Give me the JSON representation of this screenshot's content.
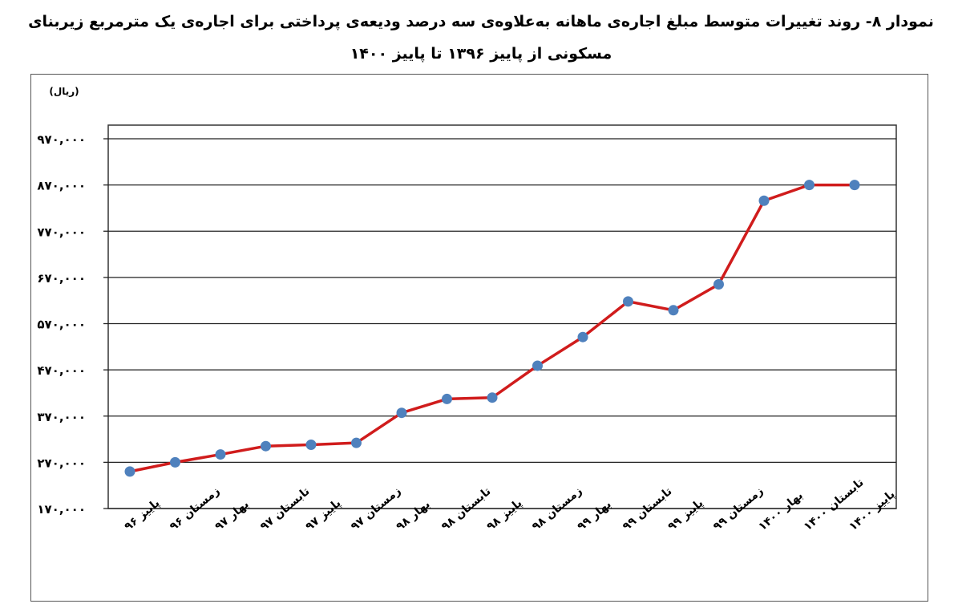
{
  "title_line1": "نمودار ۸- روند تغییرات متوسط مبلغ اجاره‌ی ماهانه به‌علاوه‌ی سه درصد ودیعه‌ی پرداختی برای اجاره‌ی یک مترمربع زیربنای",
  "title_line2": "مسکونی از پاییز ۱۳۹۶ تا پاییز ۱۴۰۰",
  "chart_data": {
    "type": "line",
    "title": "نمودار ۸- روند تغییرات متوسط مبلغ اجاره‌ی ماهانه به‌علاوه‌ی سه درصد ودیعه‌ی پرداختی برای اجاره‌ی یک مترمربع زیربنای مسکونی از پاییز ۱۳۹۶ تا پاییز ۱۴۰۰",
    "ylabel": "(ریال)",
    "xlabel": "",
    "ylim": [
      170000,
      970000
    ],
    "yticks": [
      170000,
      270000,
      370000,
      470000,
      570000,
      670000,
      770000,
      870000,
      970000
    ],
    "ytick_labels": [
      "۱۷۰,۰۰۰",
      "۲۷۰,۰۰۰",
      "۳۷۰,۰۰۰",
      "۴۷۰,۰۰۰",
      "۵۷۰,۰۰۰",
      "۶۷۰,۰۰۰",
      "۷۷۰,۰۰۰",
      "۸۷۰,۰۰۰",
      "۹۷۰,۰۰۰"
    ],
    "categories": [
      "پاییز ۹۶",
      "زمستان ۹۶",
      "بهار ۹۷",
      "تابستان ۹۷",
      "پاییز ۹۷",
      "زمستان ۹۷",
      "بهار ۹۸",
      "تابستان ۹۸",
      "پاییز ۹۸",
      "زمستان ۹۸",
      "بهار ۹۹",
      "تابستان ۹۹",
      "پاییز ۹۹",
      "زمستان ۹۹",
      "بهار ۱۴۰۰",
      "تابستان ۱۴۰۰",
      "پاییز ۱۴۰۰"
    ],
    "values": [
      250000,
      270000,
      287000,
      305000,
      308000,
      312000,
      377000,
      407000,
      410000,
      479000,
      541000,
      618000,
      599000,
      655000,
      836000,
      870000,
      870000
    ],
    "grid": true,
    "line_color": "#d01c1c",
    "marker_color": "#4f81bd"
  }
}
